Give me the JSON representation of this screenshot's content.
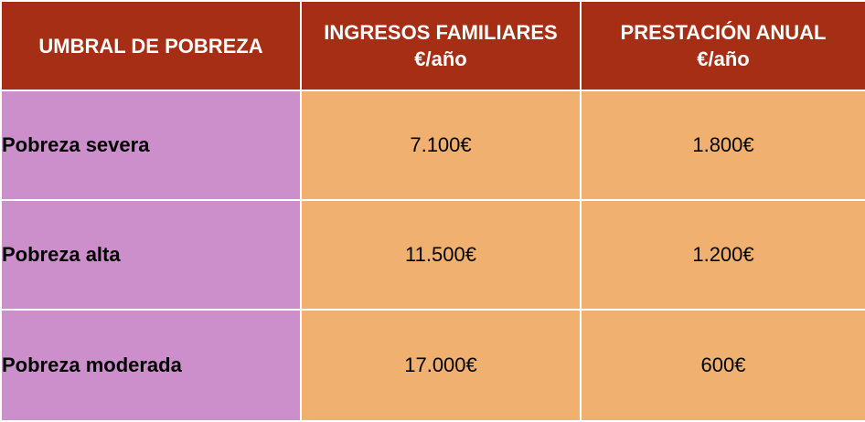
{
  "table": {
    "headers": {
      "threshold": "UMBRAL DE POBREZA",
      "income": {
        "line1": "INGRESOS FAMILIARES",
        "line2": "€/año"
      },
      "benefit": {
        "line1": "PRESTACIÓN ANUAL",
        "line2": "€/año"
      }
    },
    "rows": [
      {
        "threshold": "Pobreza severa",
        "income": "7.100€",
        "benefit": "1.800€"
      },
      {
        "threshold": "Pobreza alta",
        "income": "11.500€",
        "benefit": "1.200€"
      },
      {
        "threshold": "Pobreza moderada",
        "income": "17.000€",
        "benefit": "600€"
      }
    ],
    "colors": {
      "header_bg": "#a62e14",
      "label_bg": "#cc8fcc",
      "value_bg": "#f0b070",
      "header_text": "#ffffff"
    }
  }
}
